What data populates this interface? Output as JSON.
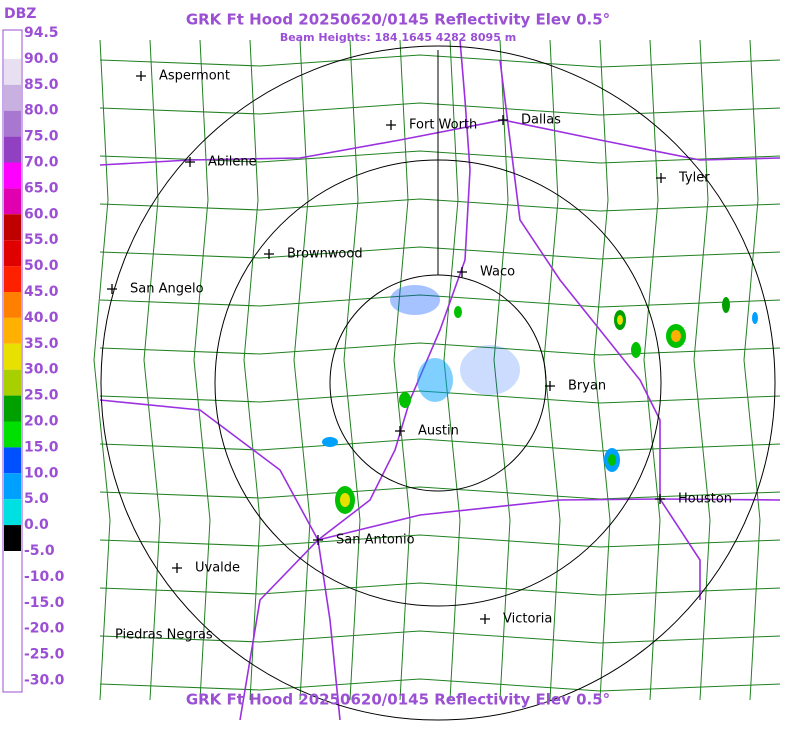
{
  "header": {
    "title": "GRK Ft Hood 20250620/0145 Reflectivity Elev 0.5°",
    "subtitle": "Beam Heights: 184 1645 4282 8095 m"
  },
  "legend": {
    "unit": "DBZ",
    "labels": [
      "94.5",
      "90.0",
      "85.0",
      "80.0",
      "75.0",
      "70.0",
      "65.0",
      "60.0",
      "55.0",
      "50.0",
      "45.0",
      "40.0",
      "35.0",
      "30.0",
      "25.0",
      "20.0",
      "15.0",
      "10.0",
      "5.0",
      "0.0",
      "-5.0",
      "-10.0",
      "-15.0",
      "-20.0",
      "-25.0",
      "-30.0"
    ],
    "colors": [
      "#ffffff",
      "#e8e0f0",
      "#c8b0e0",
      "#a878d0",
      "#9040c0",
      "#ff00ff",
      "#e000b0",
      "#c00000",
      "#e00000",
      "#ff2000",
      "#ff8000",
      "#ffb000",
      "#e8e000",
      "#a8d000",
      "#00a000",
      "#00e000",
      "#0050ff",
      "#00a0ff",
      "#00e0e0",
      "#000000",
      "#ffffff",
      "#ffffff",
      "#ffffff",
      "#ffffff",
      "#ffffff"
    ]
  },
  "cities": [
    "Aspermont",
    "Fort Worth",
    "Dallas",
    "Abilene",
    "Tyler",
    "Brownwood",
    "Waco",
    "San Angelo",
    "Bryan",
    "Austin",
    "Houston",
    "San Antonio",
    "Uvalde",
    "Victoria",
    "Piedras Negras"
  ],
  "footer": {
    "title": "GRK Ft Hood 20250620/0145 Reflectivity Elev 0.5°"
  }
}
